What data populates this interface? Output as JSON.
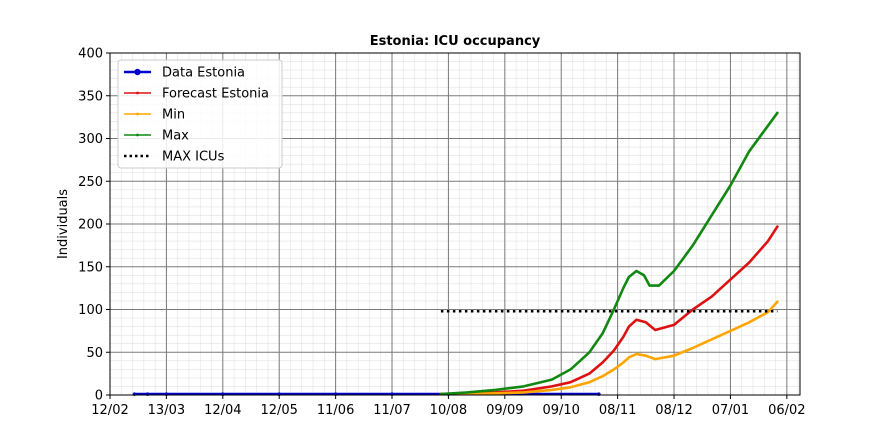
{
  "chart_data": {
    "type": "line",
    "title": "Estonia: ICU occupancy",
    "xlabel": "",
    "ylabel": "Individuals",
    "x_tick_labels": [
      "12/02",
      "13/03",
      "12/04",
      "12/05",
      "11/06",
      "11/07",
      "10/08",
      "09/09",
      "09/10",
      "08/11",
      "08/12",
      "07/01",
      "06/02"
    ],
    "y_ticks": [
      0,
      50,
      100,
      150,
      200,
      250,
      300,
      350,
      400
    ],
    "xlim_days": [
      0,
      367
    ],
    "ylim": [
      0,
      400
    ],
    "grid": true,
    "legend_position": "top-left",
    "series": [
      {
        "name": "Data Estonia",
        "color": "#0000cc",
        "style": "solid-markers",
        "x_days": [
          13,
          20,
          30,
          60,
          90,
          120,
          150,
          180,
          260
        ],
        "y": [
          1,
          1,
          1,
          1,
          1,
          1,
          1,
          1,
          1
        ]
      },
      {
        "name": "Forecast Estonia",
        "color": "#dd1111",
        "style": "solid",
        "x_days": [
          176,
          190,
          205,
          220,
          235,
          245,
          255,
          262,
          268,
          273,
          276,
          280,
          285,
          290,
          300,
          310,
          320,
          330,
          340,
          350,
          355
        ],
        "y": [
          1,
          2,
          3,
          5,
          10,
          15,
          25,
          38,
          52,
          68,
          80,
          88,
          85,
          76,
          82,
          100,
          115,
          135,
          155,
          180,
          197
        ]
      },
      {
        "name": "Min",
        "color": "#ffa500",
        "style": "solid",
        "x_days": [
          176,
          190,
          205,
          220,
          235,
          245,
          255,
          262,
          268,
          273,
          276,
          280,
          285,
          290,
          300,
          310,
          320,
          330,
          340,
          350,
          355
        ],
        "y": [
          1,
          1,
          2,
          3,
          6,
          9,
          15,
          22,
          30,
          38,
          44,
          48,
          46,
          42,
          46,
          55,
          65,
          75,
          85,
          97,
          109
        ]
      },
      {
        "name": "Max",
        "color": "#118811",
        "style": "solid",
        "x_days": [
          176,
          190,
          205,
          220,
          235,
          245,
          255,
          262,
          268,
          273,
          276,
          280,
          284,
          287,
          292,
          300,
          310,
          320,
          330,
          340,
          350,
          355
        ],
        "y": [
          1,
          3,
          6,
          10,
          18,
          30,
          50,
          72,
          100,
          125,
          138,
          145,
          140,
          128,
          128,
          145,
          175,
          210,
          245,
          285,
          315,
          330
        ]
      },
      {
        "name": "MAX ICUs",
        "color": "#000000",
        "style": "dotted",
        "x_days": [
          176,
          355
        ],
        "y": [
          98,
          98
        ]
      }
    ]
  }
}
